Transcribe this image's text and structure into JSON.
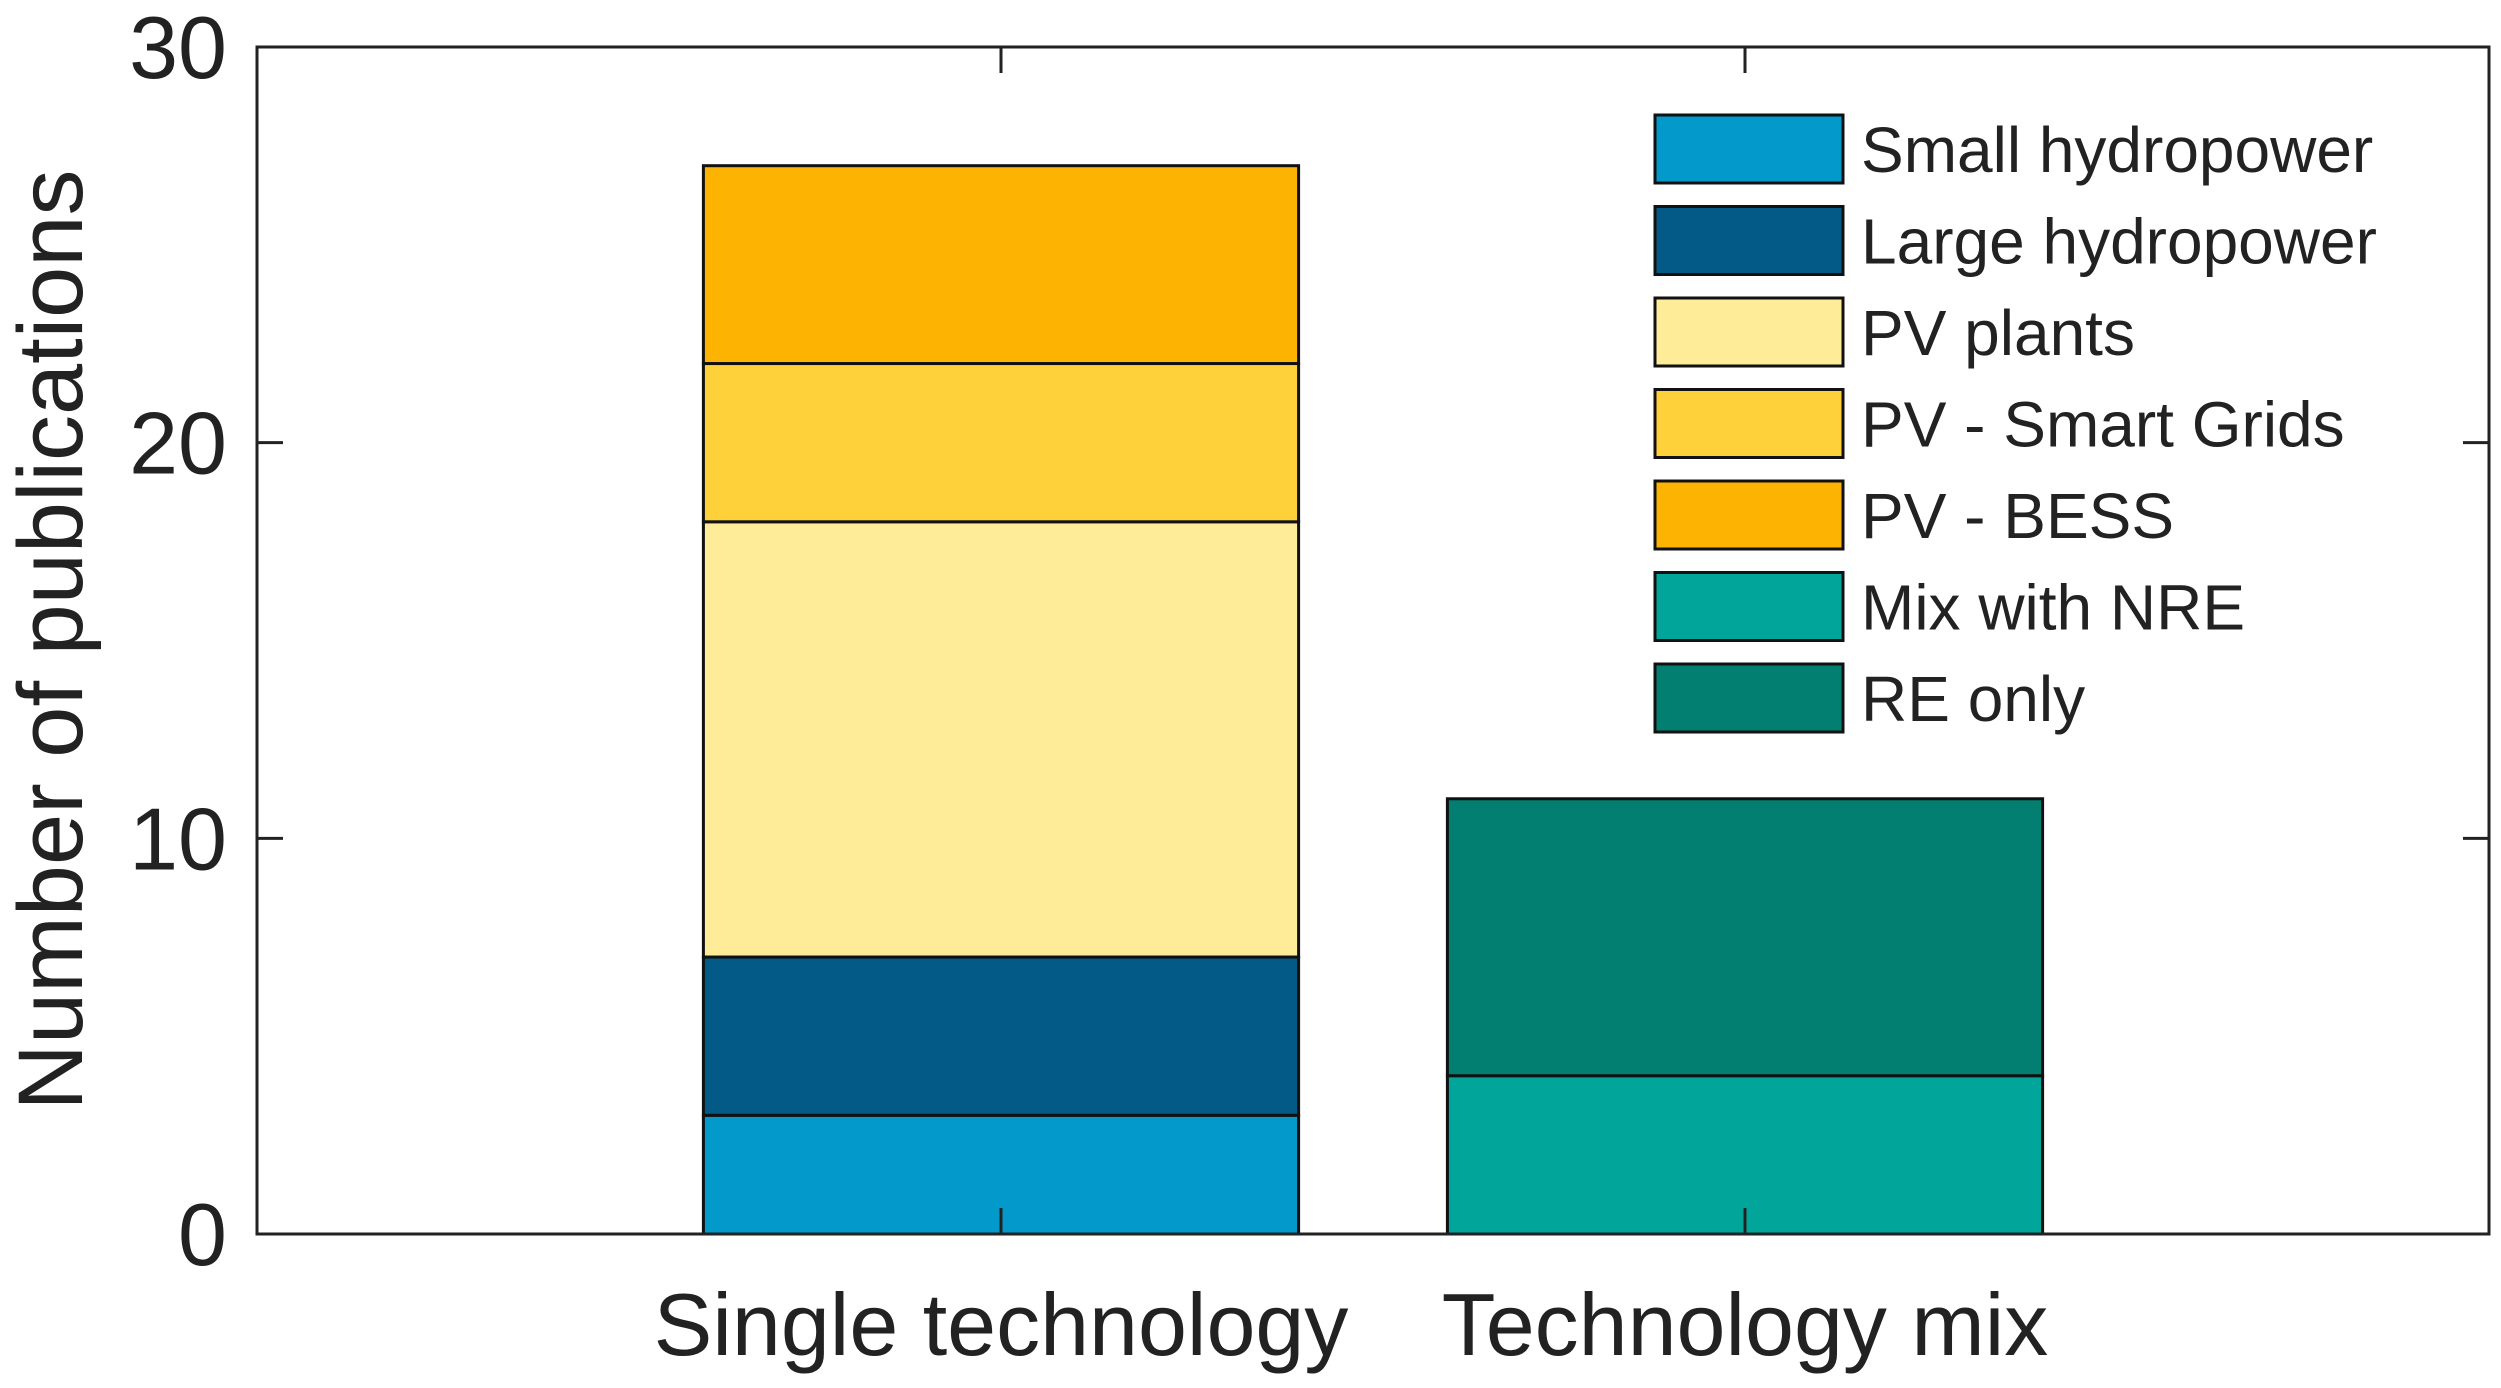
{
  "chart_data": {
    "type": "bar",
    "stacked": true,
    "title": "",
    "xlabel": "",
    "ylabel": "Number of publications",
    "ylim": [
      0,
      30
    ],
    "yticks": [
      "0",
      "10",
      "20",
      "30"
    ],
    "grid": false,
    "legend_position": "top-right",
    "categories": [
      "Single technology",
      "Technology mix"
    ],
    "series": [
      {
        "name": "Small hydropower",
        "color": "#0399CB",
        "values": [
          3,
          0
        ]
      },
      {
        "name": "Large hydropower",
        "color": "#035A87",
        "values": [
          4,
          0
        ]
      },
      {
        "name": "PV plants",
        "color": "#FEEC99",
        "values": [
          11,
          0
        ]
      },
      {
        "name": "PV - Smart Grids",
        "color": "#FED03A",
        "values": [
          4,
          0
        ]
      },
      {
        "name": "PV - BESS",
        "color": "#FDB301",
        "values": [
          5,
          0
        ]
      },
      {
        "name": "Mix with NRE",
        "color": "#01A59A",
        "values": [
          0,
          4
        ]
      },
      {
        "name": "RE only",
        "color": "#027F70",
        "values": [
          0,
          7
        ]
      }
    ]
  }
}
